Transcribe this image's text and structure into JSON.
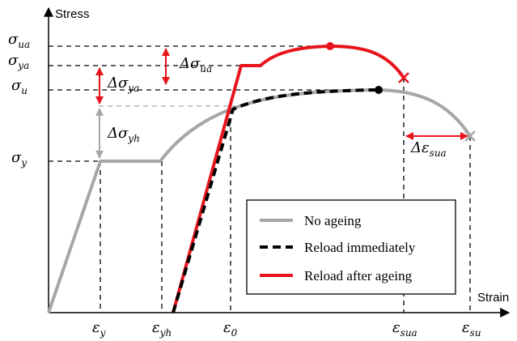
{
  "axes": {
    "y_label": "Stress",
    "x_label": "Strain"
  },
  "y_ticks": [
    {
      "sym": "σ",
      "sub": "ua"
    },
    {
      "sym": "σ",
      "sub": "ya"
    },
    {
      "sym": "σ",
      "sub": "u"
    },
    {
      "sym": "σ",
      "sub": "y"
    }
  ],
  "x_ticks": [
    {
      "sym": "ε",
      "sub": "y"
    },
    {
      "sym": "ε",
      "sub": "yh"
    },
    {
      "sym": "ε",
      "sub": "0"
    },
    {
      "sym": "ε",
      "sub": "sua"
    },
    {
      "sym": "ε",
      "sub": "su"
    }
  ],
  "annotations": {
    "d_sigma_ua": {
      "delta": "Δ",
      "sym": "σ",
      "sub": "ua"
    },
    "d_sigma_ya": {
      "delta": "Δ",
      "sym": "σ",
      "sub": "ya"
    },
    "d_sigma_yh": {
      "delta": "Δ",
      "sym": "σ",
      "sub": "yh"
    },
    "d_eps_sua": {
      "delta": "Δ",
      "sym": "ε",
      "sub": "sua"
    }
  },
  "legend": [
    {
      "label": "No ageing",
      "color": "#a6a6a6",
      "style": "solid"
    },
    {
      "label": "Reload immediately",
      "color": "#000000",
      "style": "dashed"
    },
    {
      "label": "Reload after ageing",
      "color": "#e8141b",
      "style": "solid"
    }
  ],
  "colors": {
    "grey_curve": "#a6a6a6",
    "black_curve": "#000000",
    "red_curve": "#e8141b",
    "grey_arrow": "#a6a6a6",
    "red_arrow": "#e8141b"
  }
}
